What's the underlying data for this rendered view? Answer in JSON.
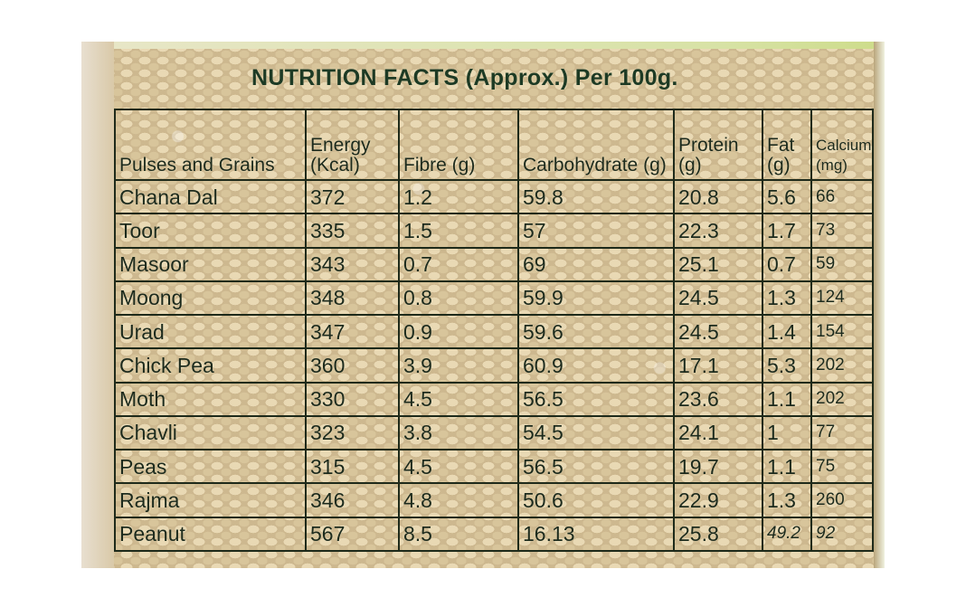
{
  "title": "NUTRITION FACTS (Approx.) Per 100g.",
  "headers": [
    "Pulses and Grains",
    "Energy (Kcal)",
    "Fibre (g)",
    "Carbohydrate (g)",
    "Protein (g)",
    "Fat (g)",
    "Calcium (mg)"
  ],
  "rows": [
    [
      "Chana Dal",
      "372",
      "1.2",
      "59.8",
      "20.8",
      "5.6",
      "66"
    ],
    [
      "Toor",
      "335",
      "1.5",
      "57",
      "22.3",
      "1.7",
      "73"
    ],
    [
      "Masoor",
      "343",
      "0.7",
      "69",
      "25.1",
      "0.7",
      "59"
    ],
    [
      "Moong",
      "348",
      "0.8",
      "59.9",
      "24.5",
      "1.3",
      "124"
    ],
    [
      "Urad",
      "347",
      "0.9",
      "59.6",
      "24.5",
      "1.4",
      "154"
    ],
    [
      "Chick Pea",
      "360",
      "3.9",
      "60.9",
      "17.1",
      "5.3",
      "202"
    ],
    [
      "Moth",
      "330",
      "4.5",
      "56.5",
      "23.6",
      "1.1",
      "202"
    ],
    [
      "Chavli",
      "323",
      "3.8",
      "54.5",
      "24.1",
      "1",
      "77"
    ],
    [
      "Peas",
      "315",
      "4.5",
      "56.5",
      "19.7",
      "1.1",
      "75"
    ],
    [
      "Rajma",
      "346",
      "4.8",
      "50.6",
      "22.9",
      "1.3",
      "260"
    ],
    [
      "Peanut",
      "567",
      "8.5",
      "16.13",
      "25.8",
      "49.2",
      "92"
    ]
  ]
}
